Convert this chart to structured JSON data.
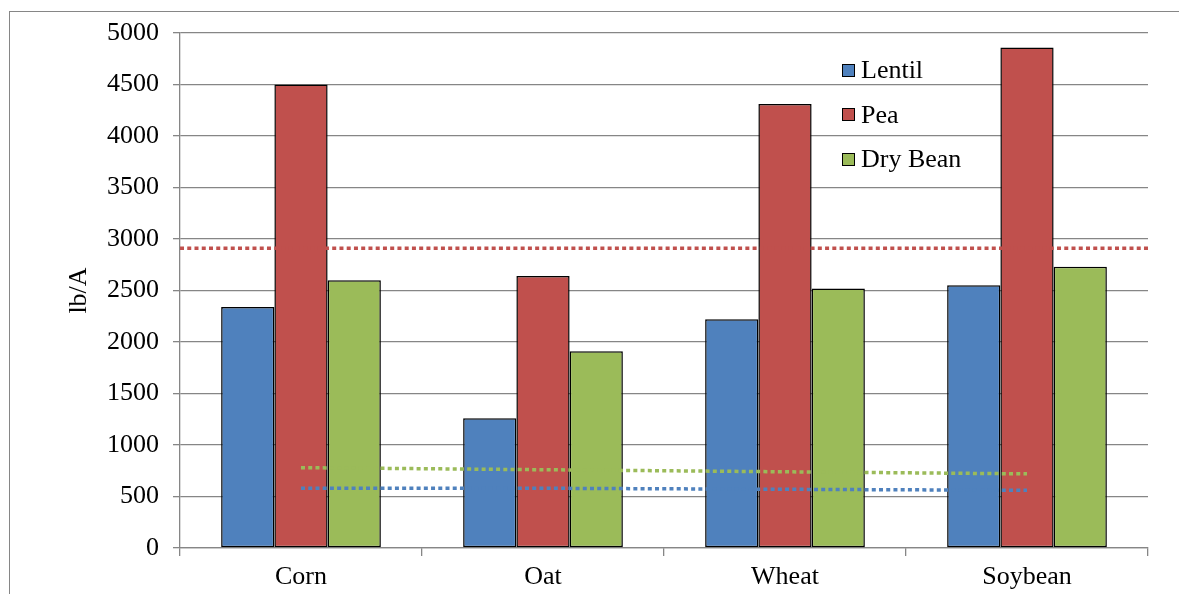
{
  "chart_data": {
    "type": "bar",
    "ylabel": "lb/A",
    "categories": [
      "Corn",
      "Oat",
      "Wheat",
      "Soybean"
    ],
    "series": [
      {
        "name": "Lentil",
        "color": "#4f81bd",
        "values": [
          2340,
          1260,
          2220,
          2550
        ]
      },
      {
        "name": "Pea",
        "color": "#c0504d",
        "values": [
          4500,
          2640,
          4310,
          4860
        ]
      },
      {
        "name": "Dry Bean",
        "color": "#9bbb59",
        "values": [
          2600,
          1910,
          2520,
          2730
        ]
      },
      {
        "type": "line",
        "color": "#9bbb59",
        "line_style": "dotted",
        "values": [
          780,
          760,
          740,
          720
        ]
      },
      {
        "type": "line",
        "color": "#4f81bd",
        "line_style": "dotted",
        "values": [
          580,
          580,
          570,
          560
        ]
      }
    ],
    "ref_lines": [
      {
        "axis": "y",
        "value": 2910,
        "color": "#c0504d",
        "line_style": "dotted"
      }
    ],
    "ylim": [
      0,
      5000
    ],
    "yticks": [
      0,
      500,
      1000,
      1500,
      2000,
      2500,
      3000,
      3500,
      4000,
      4500,
      5000
    ],
    "grid": "y",
    "legend": "top right"
  }
}
